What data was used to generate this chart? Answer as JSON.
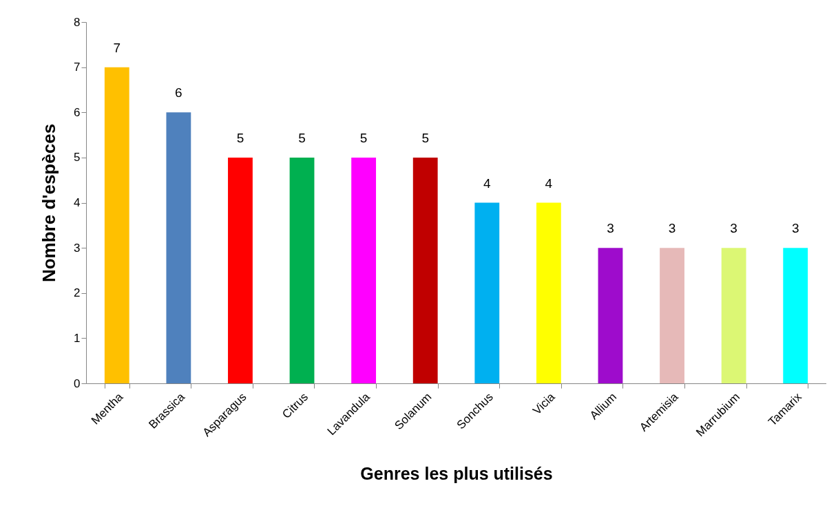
{
  "chart_data": {
    "type": "bar",
    "xlabel": "Genres les plus utilisés",
    "ylabel": "Nombre d'espèces",
    "categories": [
      "Mentha",
      "Brassica",
      "Asparagus",
      "Citrus",
      "Lavandula",
      "Solanum",
      "Sonchus",
      "Vicia",
      "Allium",
      "Artemisia",
      "Marrubium",
      "Tamarix"
    ],
    "values": [
      7,
      6,
      5,
      5,
      5,
      5,
      4,
      4,
      3,
      3,
      3,
      3
    ],
    "colors": [
      "#ffc000",
      "#4f81bd",
      "#ff0000",
      "#00b050",
      "#ff00ff",
      "#c00000",
      "#00b0f0",
      "#ffff00",
      "#9e0ccc",
      "#e6b9b8",
      "#dcf774",
      "#00ffff"
    ],
    "ylim": [
      0,
      8
    ],
    "yticks": [
      0,
      1,
      2,
      3,
      4,
      5,
      6,
      7,
      8
    ],
    "data_labels": true
  }
}
